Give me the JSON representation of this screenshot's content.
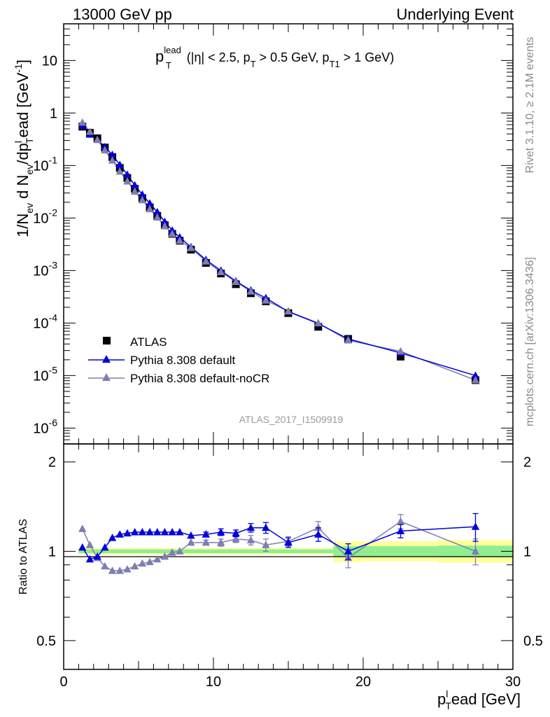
{
  "header": {
    "left": "13000 GeV pp",
    "right": "Underlying Event"
  },
  "side_labels": {
    "rivet": "Rivet 3.1.10, ≥ 2.1M events",
    "mcplots": "mcplots.cern.ch [arXiv:1306.3436]"
  },
  "watermark": "ATLAS_2017_I1509919",
  "colors": {
    "atlas": "#000000",
    "pythia_default": "#0000dd",
    "pythia_nocr": "#7e7eb4",
    "band_inner": "#90ee90",
    "band_outer": "#ffff99"
  },
  "chart_data": [
    {
      "type": "scatter",
      "panel": "main",
      "title": "p_T^lead (|η| < 2.5, p_T > 0.5 GeV, p_T1 > 1 GeV)",
      "title_parts": {
        "p": "p",
        "T": "T",
        "lead": "lead",
        "cuts1": "(|η| < 2.5, p",
        "cuts2": " > 0.5 GeV, p",
        "T1": "T1",
        "cuts3": " > 1 GeV)"
      },
      "ylabel": "1/N_ev d N_ev/dp_T^lead [GeV^-1]",
      "ylabel_parts": {
        "a": "1/N",
        "ev1": "ev",
        "b": " d N",
        "ev2": "ev",
        "c": "/dp",
        "T": "T",
        "l": "l",
        "d": "ead [GeV",
        "m1": "-1",
        "e": "]"
      },
      "xlim": [
        0,
        30
      ],
      "ylim": [
        5e-07,
        50
      ],
      "yscale": "log",
      "y_tick_labels": [
        "10^-6",
        "10^-5",
        "10^-4",
        "10^-3",
        "10^-2",
        "10^-1",
        "1",
        "10"
      ],
      "legend": {
        "placement": "lower-left",
        "entries": [
          "ATLAS",
          "Pythia 8.308 default",
          "Pythia 8.308 default-noCR"
        ]
      },
      "series": [
        {
          "name": "ATLAS",
          "marker": "square",
          "x": [
            1.25,
            1.75,
            2.25,
            2.75,
            3.25,
            3.75,
            4.25,
            4.75,
            5.25,
            5.75,
            6.25,
            6.75,
            7.25,
            7.75,
            8.5,
            9.5,
            10.5,
            11.5,
            12.5,
            13.5,
            15.0,
            17.0,
            19.0,
            22.5,
            27.5
          ],
          "values": [
            0.55,
            0.42,
            0.33,
            0.22,
            0.145,
            0.09,
            0.058,
            0.036,
            0.024,
            0.016,
            0.011,
            0.0073,
            0.005,
            0.0037,
            0.0025,
            0.0014,
            0.00088,
            0.00055,
            0.00037,
            0.00026,
            0.000155,
            8.5e-05,
            5e-05,
            2.3e-05,
            8.2e-06
          ]
        },
        {
          "name": "Pythia 8.308 default",
          "marker": "triangle",
          "x": [
            1.25,
            1.75,
            2.25,
            2.75,
            3.25,
            3.75,
            4.25,
            4.75,
            5.25,
            5.75,
            6.25,
            6.75,
            7.25,
            7.75,
            8.5,
            9.5,
            10.5,
            11.5,
            12.5,
            13.5,
            15.0,
            17.0,
            19.0,
            22.5,
            27.5
          ],
          "values": [
            0.57,
            0.39,
            0.31,
            0.225,
            0.16,
            0.103,
            0.067,
            0.042,
            0.028,
            0.019,
            0.013,
            0.0085,
            0.0058,
            0.0043,
            0.0028,
            0.0016,
            0.001,
            0.00063,
            0.00042,
            0.0003,
            0.000165,
            9.8e-05,
            5e-05,
            2.7e-05,
            1e-05
          ]
        },
        {
          "name": "Pythia 8.308 default-noCR",
          "marker": "triangle",
          "x": [
            1.25,
            1.75,
            2.25,
            2.75,
            3.25,
            3.75,
            4.25,
            4.75,
            5.25,
            5.75,
            6.25,
            6.75,
            7.25,
            7.75,
            8.5,
            9.5,
            10.5,
            11.5,
            12.5,
            13.5,
            15.0,
            17.0,
            19.0,
            22.5,
            27.5
          ],
          "values": [
            0.66,
            0.44,
            0.31,
            0.195,
            0.125,
            0.077,
            0.05,
            0.032,
            0.022,
            0.0148,
            0.0103,
            0.007,
            0.005,
            0.0037,
            0.0027,
            0.0015,
            0.00094,
            0.00061,
            0.0004,
            0.00027,
            0.000168,
            0.0001,
            4.7e-05,
            2.9e-05,
            8.2e-06
          ]
        }
      ]
    },
    {
      "type": "line",
      "panel": "ratio",
      "ylabel": "Ratio to ATLAS",
      "xlabel": "p_T^lead [GeV]",
      "xlabel_parts": {
        "p": "p",
        "T": "T",
        "l": "l",
        "rest": "ead [GeV]"
      },
      "xlim": [
        0,
        30
      ],
      "ylim": [
        0.4,
        2.3
      ],
      "yscale": "log",
      "x_ticks": [
        0,
        10,
        20,
        30
      ],
      "x_tick_labels": [
        "0",
        "10",
        "20",
        "30"
      ],
      "y_ticks": [
        0.5,
        1,
        2
      ],
      "y_tick_labels": [
        "0.5",
        "1",
        "2"
      ],
      "bands": {
        "edges": [
          1.0,
          18.0,
          20.0,
          25.0,
          30.0
        ],
        "inner": [
          [
            0.985,
            1.015
          ],
          [
            0.96,
            1.04
          ],
          [
            0.96,
            1.04
          ],
          [
            0.955,
            1.045
          ]
        ],
        "outer": [
          [
            0.975,
            1.025
          ],
          [
            0.92,
            1.08
          ],
          [
            0.925,
            1.08
          ],
          [
            0.915,
            1.09
          ]
        ]
      },
      "series": [
        {
          "name": "Pythia 8.308 default",
          "x": [
            1.25,
            1.75,
            2.25,
            2.75,
            3.25,
            3.75,
            4.25,
            4.75,
            5.25,
            5.75,
            6.25,
            6.75,
            7.25,
            7.75,
            8.5,
            9.5,
            10.5,
            11.5,
            12.5,
            13.5,
            15.0,
            17.0,
            19.0,
            22.5,
            27.5
          ],
          "values": [
            1.03,
            0.94,
            0.96,
            1.03,
            1.11,
            1.14,
            1.15,
            1.16,
            1.16,
            1.16,
            1.16,
            1.16,
            1.16,
            1.16,
            1.13,
            1.14,
            1.16,
            1.15,
            1.2,
            1.2,
            1.07,
            1.14,
            1.0,
            1.17,
            1.21
          ],
          "errors": [
            0.0,
            0.0,
            0.0,
            0.0,
            0.0,
            0.0,
            0.0,
            0.0,
            0.0,
            0.0,
            0.0,
            0.0,
            0.0,
            0.0,
            0.0,
            0.02,
            0.03,
            0.03,
            0.04,
            0.05,
            0.04,
            0.06,
            0.06,
            0.06,
            0.13
          ]
        },
        {
          "name": "Pythia 8.308 default-noCR",
          "x": [
            1.25,
            1.75,
            2.25,
            2.75,
            3.25,
            3.75,
            4.25,
            4.75,
            5.25,
            5.75,
            6.25,
            6.75,
            7.25,
            7.75,
            8.5,
            9.5,
            10.5,
            11.5,
            12.5,
            13.5,
            15.0,
            17.0,
            19.0,
            22.5,
            27.5
          ],
          "values": [
            1.19,
            1.05,
            0.95,
            0.89,
            0.86,
            0.86,
            0.87,
            0.89,
            0.91,
            0.92,
            0.94,
            0.96,
            0.99,
            1.0,
            1.07,
            1.07,
            1.07,
            1.1,
            1.09,
            1.05,
            1.08,
            1.2,
            0.95,
            1.26,
            1.0
          ],
          "errors": [
            0.0,
            0.0,
            0.0,
            0.0,
            0.0,
            0.0,
            0.0,
            0.0,
            0.0,
            0.0,
            0.0,
            0.0,
            0.0,
            0.0,
            0.0,
            0.02,
            0.03,
            0.03,
            0.04,
            0.05,
            0.04,
            0.06,
            0.07,
            0.07,
            0.1
          ]
        }
      ]
    }
  ]
}
